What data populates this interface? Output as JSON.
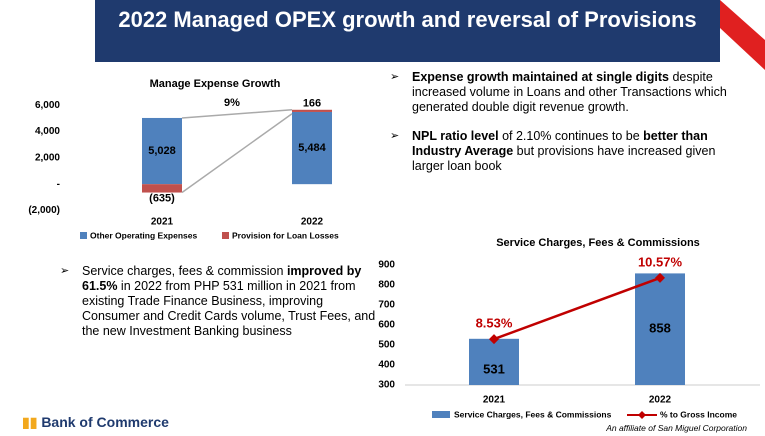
{
  "title": "2022 Managed OPEX growth and reversal of Provisions",
  "bullets_right": [
    [
      {
        "text": "Expense growth maintained at single digits",
        "bold": true
      },
      {
        "text": " despite increased volume in Loans and other Transactions which generated double digit revenue growth.",
        "bold": false
      }
    ],
    [
      {
        "text": "NPL ratio level",
        "bold": true
      },
      {
        "text": " of 2.10% continues to be ",
        "bold": false
      },
      {
        "text": "better than Industry Average",
        "bold": true
      },
      {
        "text": " but provisions have increased given larger loan book",
        "bold": false
      }
    ]
  ],
  "bullets_left": [
    [
      {
        "text": "Service charges, fees & commission ",
        "bold": false
      },
      {
        "text": "improved by 61.5%",
        "bold": true
      },
      {
        "text": " in 2022 from PHP 531 million in 2021 from existing Trade Finance Business, improving Consumer and Credit Cards volume, Trust Fees, and the new Investment Banking business",
        "bold": false
      }
    ]
  ],
  "logo": "Bank of Commerce",
  "footer": "An affiliate of San Miguel Corporation",
  "chart_data": [
    {
      "type": "stacked-bar",
      "title": "Manage Expense Growth",
      "categories": [
        "2021",
        "2022"
      ],
      "series": [
        {
          "name": "Other Operating Expenses",
          "color": "#4f81bd",
          "values": [
            5028,
            5484
          ],
          "value_labels": [
            "5,028",
            "5,484"
          ]
        },
        {
          "name": "Provision for Loan Losses",
          "color": "#c0504d",
          "values": [
            -635,
            166
          ],
          "value_labels": [
            "(635)",
            "166"
          ]
        }
      ],
      "annotation": "9%",
      "ylim": [
        -2000,
        7000
      ],
      "yticks": [
        {
          "value": -2000,
          "label": "(2,000)"
        },
        {
          "value": 0,
          "label": "-"
        },
        {
          "value": 2000,
          "label": "2,000"
        },
        {
          "value": 4000,
          "label": "4,000"
        },
        {
          "value": 6000,
          "label": "6,000"
        }
      ],
      "legend": "bottom"
    },
    {
      "type": "bar-line",
      "title": "Service Charges, Fees & Commissions",
      "categories": [
        "2021",
        "2022"
      ],
      "series": [
        {
          "name": "Service Charges, Fees & Commissions",
          "color": "#4f81bd",
          "values": [
            531,
            858
          ]
        },
        {
          "name": "% to Gross Income",
          "color": "#c00000",
          "axis": "y2",
          "values": [
            8.53,
            10.57
          ],
          "value_labels": [
            "8.53%",
            "10.57%"
          ]
        }
      ],
      "ylim": [
        300,
        900
      ],
      "yticks": [
        300,
        400,
        500,
        600,
        700,
        800,
        900
      ],
      "y2lim": [
        7,
        11
      ],
      "legend": "bottom"
    }
  ]
}
